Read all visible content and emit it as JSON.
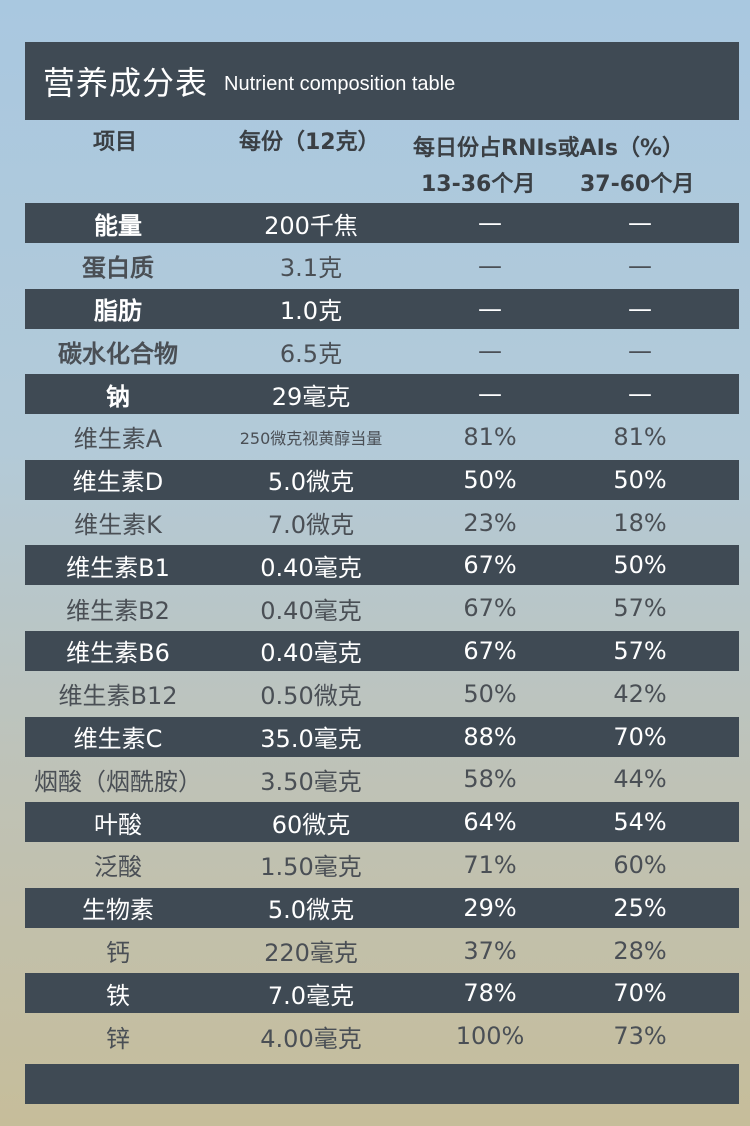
{
  "title": {
    "cn": "营养成分表",
    "en": "Nutrient composition table"
  },
  "header": {
    "item": "项目",
    "serving": "每份（12克）",
    "rni": "每日份占RNIs或AIs（%）",
    "age1": "13-36个月",
    "age2": "37-60个月"
  },
  "rows": [
    {
      "name": "能量",
      "amount": "200千焦",
      "p1": "—",
      "p2": "—"
    },
    {
      "name": "蛋白质",
      "amount": "3.1克",
      "p1": "—",
      "p2": "—"
    },
    {
      "name": "脂肪",
      "amount": "1.0克",
      "p1": "—",
      "p2": "—"
    },
    {
      "name": "碳水化合物",
      "amount": "6.5克",
      "p1": "—",
      "p2": "—"
    },
    {
      "name": "钠",
      "amount": "29毫克",
      "p1": "—",
      "p2": "—"
    },
    {
      "name": "维生素A",
      "amount": "250微克视黄醇当量",
      "p1": "81%",
      "p2": "81%"
    },
    {
      "name": "维生素D",
      "amount": "5.0微克",
      "p1": "50%",
      "p2": "50%"
    },
    {
      "name": "维生素K",
      "amount": "7.0微克",
      "p1": "23%",
      "p2": "18%"
    },
    {
      "name": "维生素B1",
      "amount": "0.40毫克",
      "p1": "67%",
      "p2": "50%"
    },
    {
      "name": "维生素B2",
      "amount": "0.40毫克",
      "p1": "67%",
      "p2": "57%"
    },
    {
      "name": "维生素B6",
      "amount": "0.40毫克",
      "p1": "67%",
      "p2": "57%"
    },
    {
      "name": "维生素B12",
      "amount": "0.50微克",
      "p1": "50%",
      "p2": "42%"
    },
    {
      "name": "维生素C",
      "amount": "35.0毫克",
      "p1": "88%",
      "p2": "70%"
    },
    {
      "name": "烟酸（烟酰胺）",
      "amount": "3.50毫克",
      "p1": "58%",
      "p2": "44%"
    },
    {
      "name": "叶酸",
      "amount": "60微克",
      "p1": "64%",
      "p2": "54%"
    },
    {
      "name": "泛酸",
      "amount": "1.50毫克",
      "p1": "71%",
      "p2": "60%"
    },
    {
      "name": "生物素",
      "amount": "5.0微克",
      "p1": "29%",
      "p2": "25%"
    },
    {
      "name": "钙",
      "amount": "220毫克",
      "p1": "37%",
      "p2": "28%"
    },
    {
      "name": "铁",
      "amount": "7.0毫克",
      "p1": "78%",
      "p2": "70%"
    },
    {
      "name": "锌",
      "amount": "4.00毫克",
      "p1": "100%",
      "p2": "73%"
    }
  ],
  "colors": {
    "dark_row": "#3f4a54",
    "light_text": "#4a4f55"
  }
}
